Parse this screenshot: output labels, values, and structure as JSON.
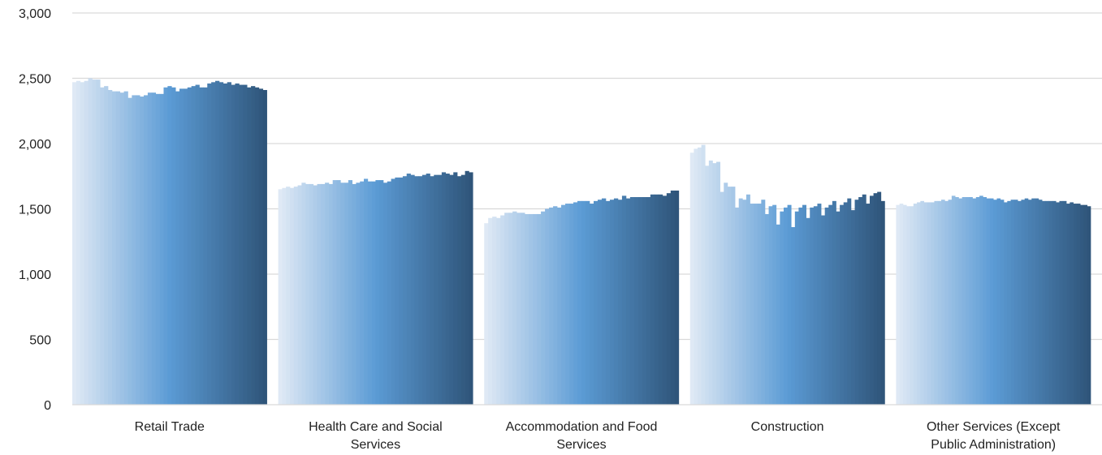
{
  "chart_data": {
    "type": "bar",
    "title": "",
    "xlabel": "",
    "ylabel": "",
    "ylim": [
      0,
      3000
    ],
    "yticks": [
      0,
      500,
      1000,
      1500,
      2000,
      2500,
      3000
    ],
    "ytick_labels": [
      "0",
      "500",
      "1,000",
      "1,500",
      "2,000",
      "2,500",
      "3,000"
    ],
    "grid": true,
    "legend": "none",
    "colors": [
      "#dfe9f5",
      "#5b9bd5",
      "#2f557a"
    ],
    "categories": [
      "Retail Trade",
      "Health Care and Social Services",
      "Accommodation and Food Services",
      "Construction",
      "Other Services (Except Public Administration)"
    ],
    "category_label_lines": [
      [
        "Retail Trade"
      ],
      [
        "Health Care and Social",
        "Services"
      ],
      [
        "Accommodation and Food",
        "Services"
      ],
      [
        "Construction"
      ],
      [
        "Other Services (Except",
        "Public Administration)"
      ]
    ],
    "values": [
      [
        2470,
        2480,
        2470,
        2480,
        2500,
        2490,
        2490,
        2430,
        2440,
        2410,
        2400,
        2400,
        2390,
        2400,
        2350,
        2370,
        2370,
        2360,
        2370,
        2390,
        2390,
        2380,
        2380,
        2430,
        2440,
        2430,
        2400,
        2420,
        2420,
        2430,
        2440,
        2450,
        2430,
        2430,
        2460,
        2470,
        2480,
        2470,
        2460,
        2470,
        2450,
        2460,
        2450,
        2450,
        2430,
        2440,
        2430,
        2420,
        2410
      ],
      [
        1650,
        1660,
        1670,
        1660,
        1670,
        1680,
        1700,
        1690,
        1690,
        1680,
        1690,
        1690,
        1700,
        1690,
        1720,
        1720,
        1700,
        1700,
        1720,
        1690,
        1700,
        1710,
        1730,
        1710,
        1710,
        1720,
        1720,
        1700,
        1710,
        1730,
        1740,
        1740,
        1750,
        1770,
        1760,
        1750,
        1750,
        1760,
        1770,
        1750,
        1760,
        1760,
        1780,
        1770,
        1760,
        1780,
        1750,
        1760,
        1790,
        1780
      ],
      [
        1390,
        1430,
        1440,
        1430,
        1450,
        1470,
        1470,
        1480,
        1470,
        1470,
        1460,
        1460,
        1460,
        1460,
        1480,
        1500,
        1510,
        1520,
        1510,
        1530,
        1540,
        1540,
        1550,
        1560,
        1560,
        1560,
        1540,
        1560,
        1570,
        1580,
        1560,
        1570,
        1580,
        1570,
        1600,
        1580,
        1590,
        1590,
        1590,
        1590,
        1590,
        1610,
        1610,
        1610,
        1600,
        1620,
        1640,
        1640
      ],
      [
        1930,
        1960,
        1970,
        1990,
        1830,
        1870,
        1850,
        1860,
        1630,
        1700,
        1670,
        1670,
        1510,
        1580,
        1570,
        1610,
        1540,
        1540,
        1540,
        1570,
        1460,
        1520,
        1530,
        1380,
        1480,
        1510,
        1530,
        1360,
        1480,
        1510,
        1530,
        1430,
        1510,
        1520,
        1540,
        1450,
        1510,
        1530,
        1560,
        1480,
        1530,
        1550,
        1580,
        1490,
        1570,
        1590,
        1610,
        1540,
        1600,
        1620,
        1630,
        1560
      ],
      [
        1530,
        1540,
        1530,
        1520,
        1520,
        1540,
        1550,
        1560,
        1550,
        1550,
        1550,
        1560,
        1560,
        1570,
        1560,
        1570,
        1600,
        1590,
        1580,
        1590,
        1590,
        1590,
        1580,
        1590,
        1600,
        1590,
        1580,
        1580,
        1570,
        1580,
        1570,
        1550,
        1560,
        1570,
        1570,
        1560,
        1570,
        1580,
        1570,
        1580,
        1580,
        1570,
        1560,
        1560,
        1560,
        1560,
        1550,
        1560,
        1560,
        1540,
        1550,
        1540,
        1540,
        1530,
        1530,
        1520
      ]
    ]
  }
}
